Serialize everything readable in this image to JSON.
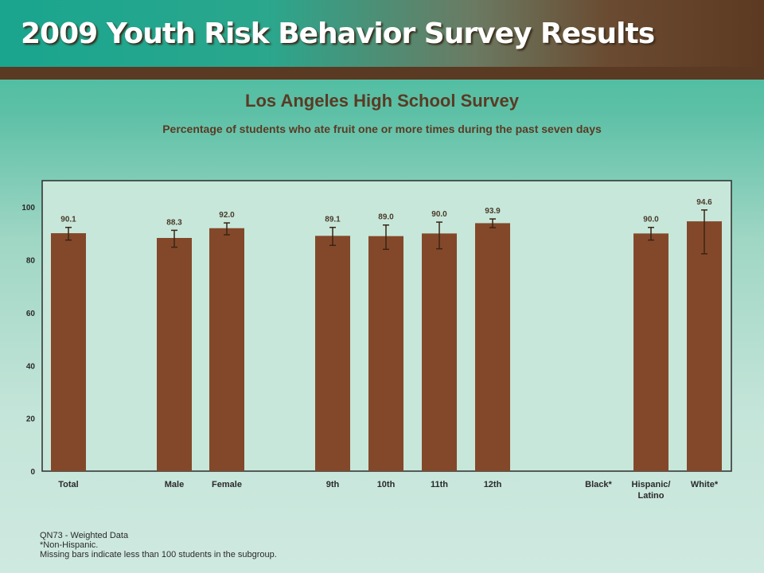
{
  "banner": {
    "title": "2009 Youth Risk Behavior Survey Results"
  },
  "chart_data": {
    "type": "bar",
    "title": "Los Angeles High School Survey",
    "subtitle": "Percentage of students who ate fruit one or more times during the past seven days",
    "categories": [
      "Total",
      "Male",
      "Female",
      "9th",
      "10th",
      "11th",
      "12th",
      "Black*",
      "Hispanic/ Latino",
      "White*"
    ],
    "values": [
      90.1,
      88.3,
      92.0,
      89.1,
      89.0,
      90.0,
      93.9,
      null,
      90.0,
      94.6
    ],
    "value_labels": [
      "90.1",
      "88.3",
      "92.0",
      "89.1",
      "89.0",
      "90.0",
      "93.9",
      "",
      "90.0",
      "94.6"
    ],
    "error_low": [
      87.5,
      84.8,
      89.5,
      85.5,
      84.0,
      84.2,
      92.2,
      null,
      87.5,
      82.3
    ],
    "error_high": [
      92.3,
      91.2,
      94.0,
      92.3,
      93.2,
      94.3,
      95.5,
      null,
      92.3,
      98.9
    ],
    "ylim": [
      0,
      110
    ],
    "yticks": [
      0,
      20,
      40,
      60,
      80,
      100
    ],
    "bar_color": "#83482a",
    "grid": false
  },
  "footnotes": [
    "QN73 - Weighted Data",
    "*Non-Hispanic.",
    "Missing bars indicate less than 100 students in the subgroup."
  ]
}
